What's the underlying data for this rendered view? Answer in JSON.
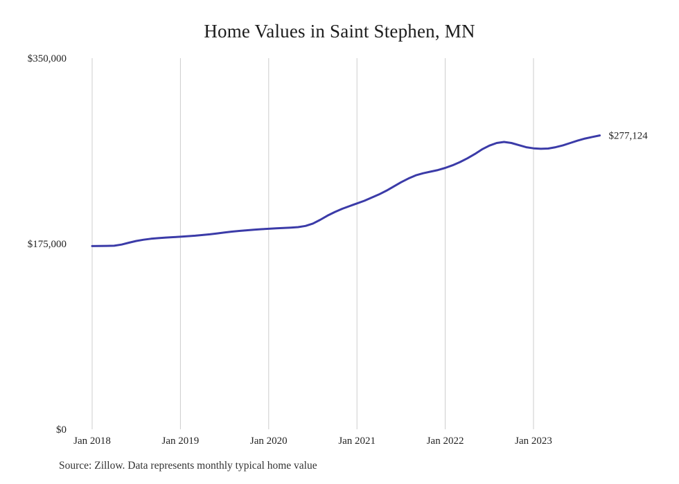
{
  "page": {
    "title": "Home Values in Saint Stephen, MN",
    "source_note": "Source: Zillow. Data represents monthly typical home value"
  },
  "colors": {
    "line": "#3b3ba8",
    "grid": "#cccccc",
    "end_label": "#3b3ba8",
    "text": "#222222"
  },
  "chart_data": {
    "type": "line",
    "title": "Home Values in Saint Stephen, MN",
    "xlabel": "",
    "ylabel": "",
    "ylim": [
      0,
      350000
    ],
    "grid": "vertical-only",
    "legend": "none",
    "end_label": "$277,124",
    "end_value": 277124,
    "y_ticks": [
      {
        "value": 0,
        "label": "$0"
      },
      {
        "value": 175000,
        "label": "$175,000"
      },
      {
        "value": 350000,
        "label": "$350,000"
      }
    ],
    "x_ticks": [
      {
        "index": 0,
        "label": "Jan 2018"
      },
      {
        "index": 12,
        "label": "Jan 2019"
      },
      {
        "index": 24,
        "label": "Jan 2020"
      },
      {
        "index": 36,
        "label": "Jan 2021"
      },
      {
        "index": 48,
        "label": "Jan 2022"
      },
      {
        "index": 60,
        "label": "Jan 2023"
      }
    ],
    "x_months": [
      "2018-01",
      "2018-02",
      "2018-03",
      "2018-04",
      "2018-05",
      "2018-06",
      "2018-07",
      "2018-08",
      "2018-09",
      "2018-10",
      "2018-11",
      "2018-12",
      "2019-01",
      "2019-02",
      "2019-03",
      "2019-04",
      "2019-05",
      "2019-06",
      "2019-07",
      "2019-08",
      "2019-09",
      "2019-10",
      "2019-11",
      "2019-12",
      "2020-01",
      "2020-02",
      "2020-03",
      "2020-04",
      "2020-05",
      "2020-06",
      "2020-07",
      "2020-08",
      "2020-09",
      "2020-10",
      "2020-11",
      "2020-12",
      "2021-01",
      "2021-02",
      "2021-03",
      "2021-04",
      "2021-05",
      "2021-06",
      "2021-07",
      "2021-08",
      "2021-09",
      "2021-10",
      "2021-11",
      "2021-12",
      "2022-01",
      "2022-02",
      "2022-03",
      "2022-04",
      "2022-05",
      "2022-06",
      "2022-07",
      "2022-08",
      "2022-09",
      "2022-10",
      "2022-11",
      "2022-12",
      "2023-01",
      "2023-02",
      "2023-03",
      "2023-04",
      "2023-05",
      "2023-06",
      "2023-07",
      "2023-08",
      "2023-09",
      "2023-10"
    ],
    "values": [
      172800,
      172900,
      173000,
      173100,
      174200,
      176000,
      177600,
      178800,
      179700,
      180300,
      180800,
      181200,
      181600,
      182100,
      182600,
      183200,
      183900,
      184700,
      185600,
      186400,
      187100,
      187700,
      188200,
      188700,
      189100,
      189500,
      189900,
      190200,
      190700,
      191800,
      194000,
      197500,
      201500,
      205000,
      208000,
      210500,
      213000,
      215500,
      218500,
      221500,
      225000,
      229000,
      233000,
      236500,
      239500,
      241500,
      243000,
      244500,
      246500,
      249000,
      252000,
      255500,
      259500,
      264000,
      267500,
      270000,
      271000,
      270000,
      268000,
      266000,
      265000,
      264500,
      264800,
      266000,
      267800,
      270000,
      272200,
      274200,
      275700,
      277124
    ]
  }
}
